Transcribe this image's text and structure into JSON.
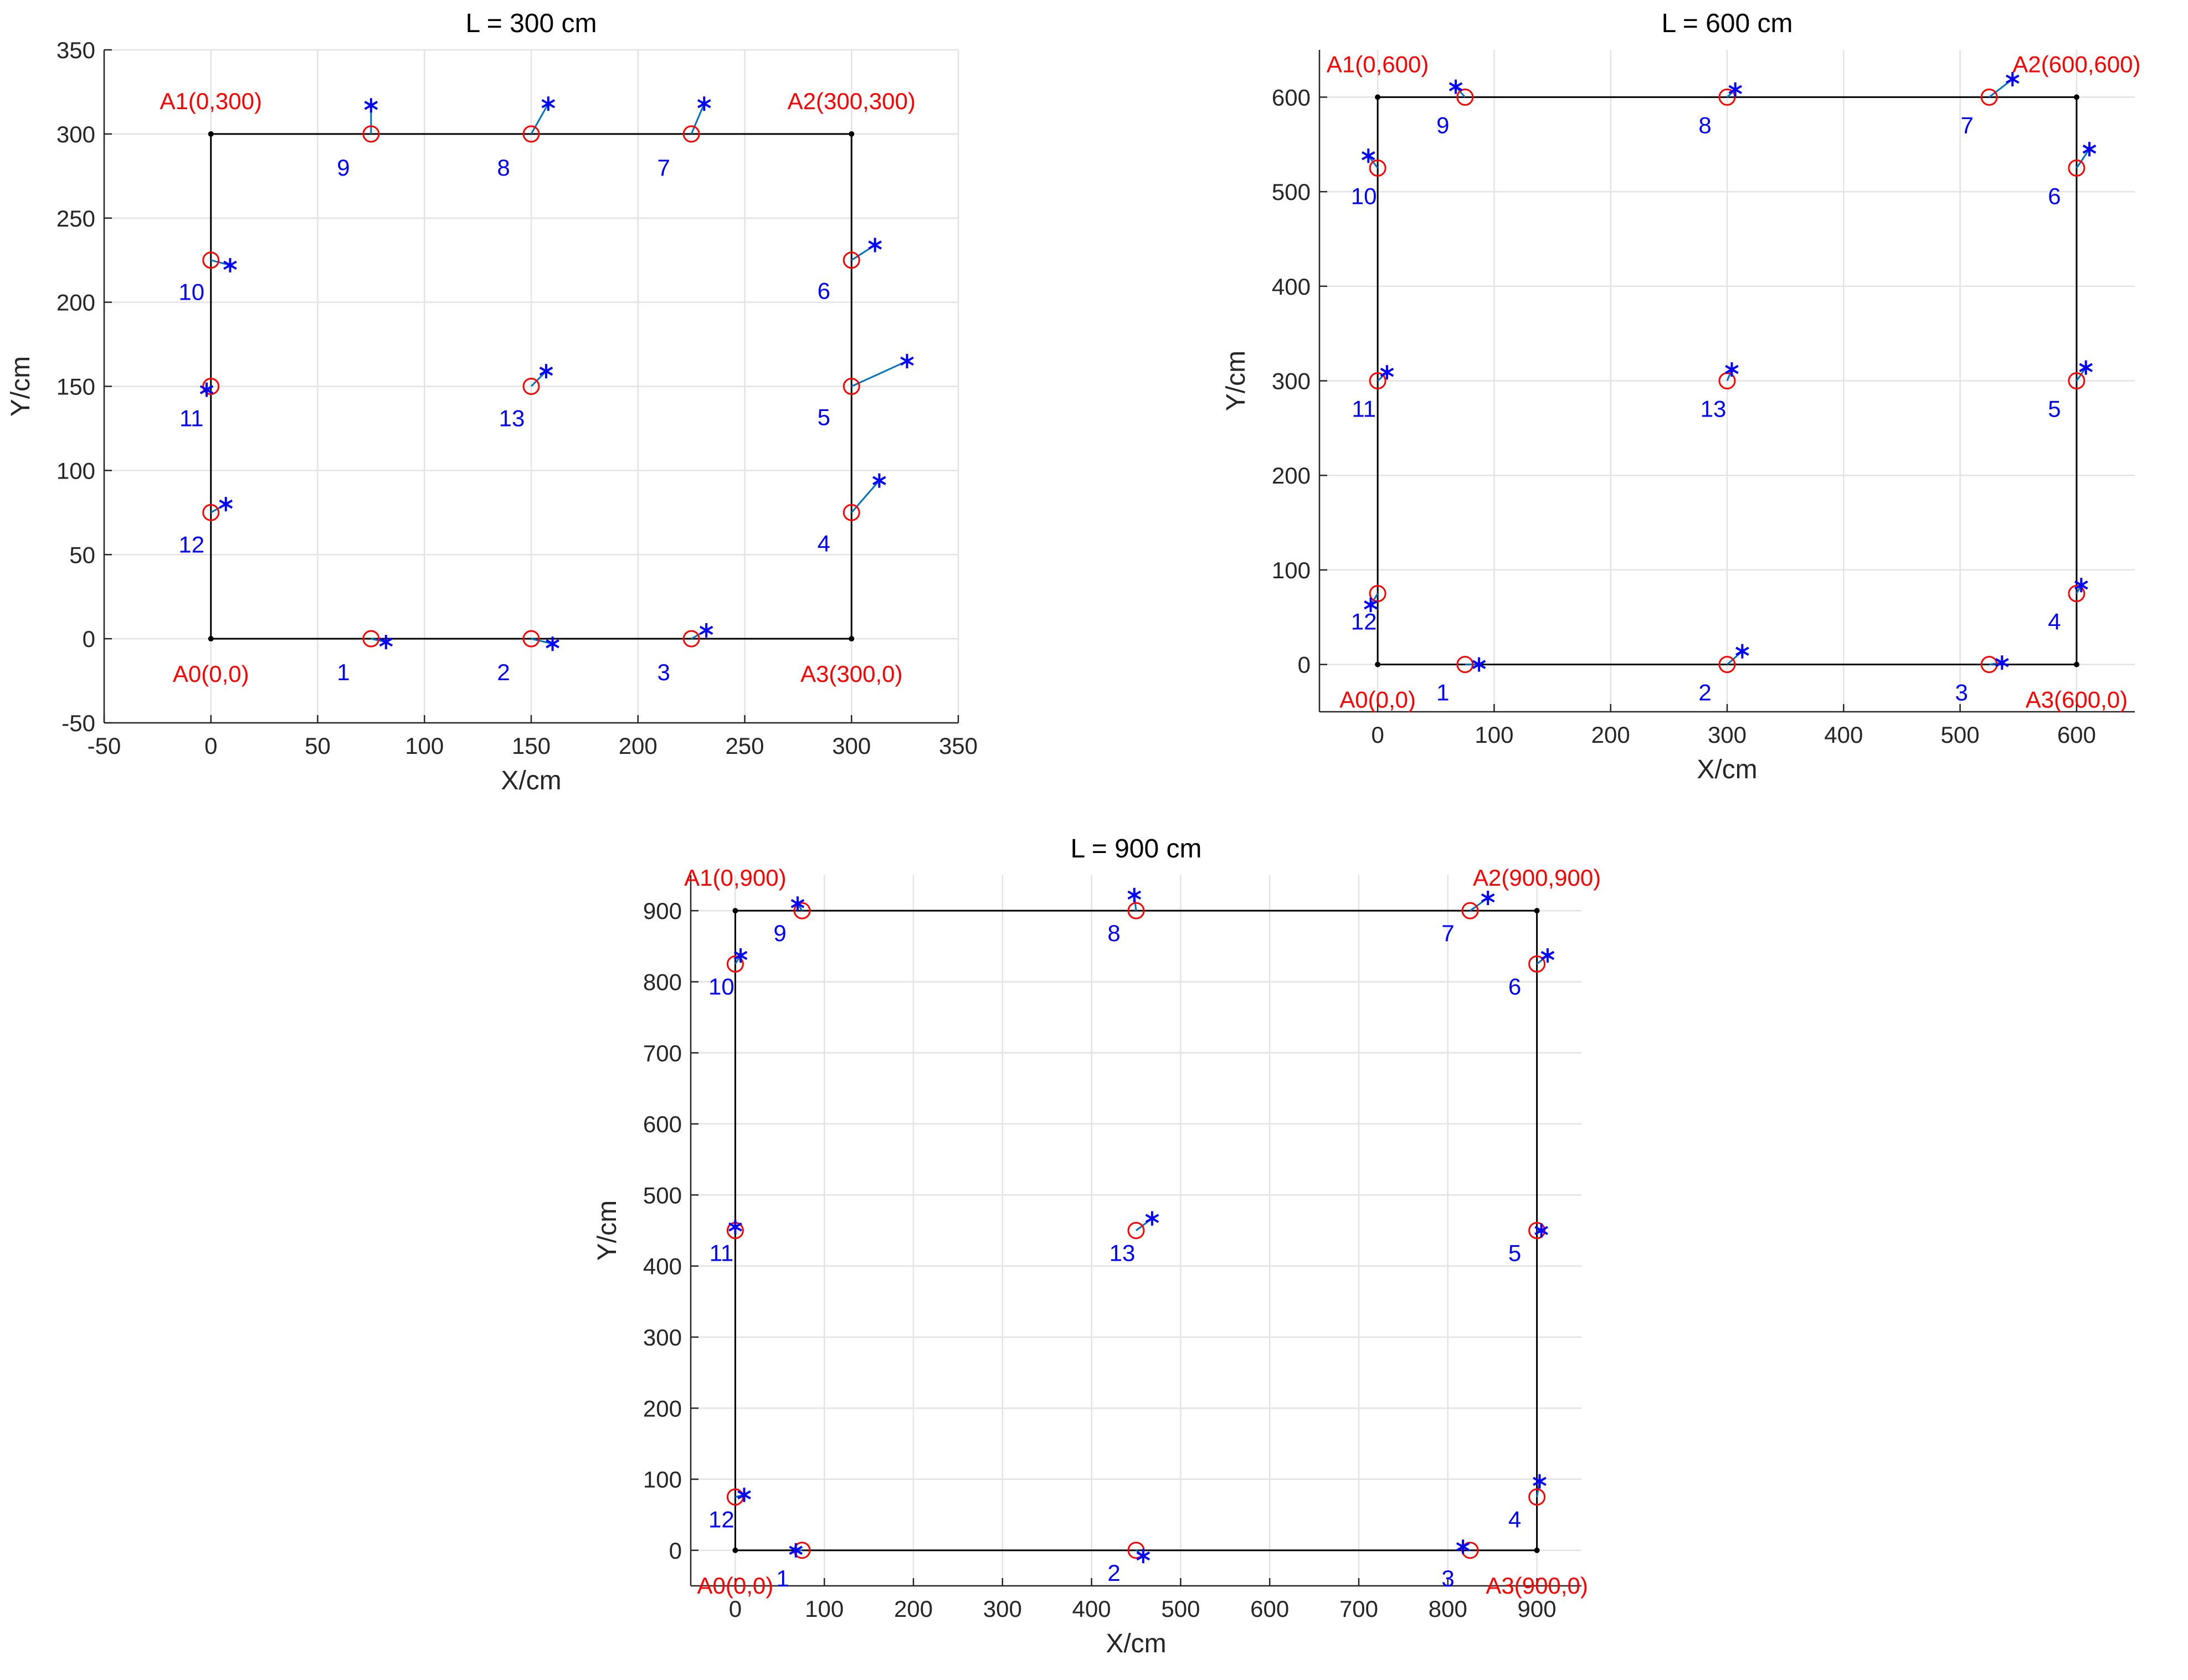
{
  "colors": {
    "true_position": "#ff0000",
    "estimated_position": "#0000ff",
    "error_line": "#0072bd",
    "boundary": "#000000",
    "grid": "#e3e3e3"
  },
  "chart_data": [
    {
      "type": "scatter",
      "title": "L = 300 cm",
      "xlabel": "X/cm",
      "ylabel": "Y/cm",
      "xlim": [
        -50,
        350
      ],
      "ylim": [
        -50,
        350
      ],
      "xticks": [
        -50,
        0,
        50,
        100,
        150,
        200,
        250,
        300,
        350
      ],
      "yticks": [
        -50,
        0,
        50,
        100,
        150,
        200,
        250,
        300,
        350
      ],
      "grid": true,
      "boundary": [
        [
          0,
          0
        ],
        [
          0,
          300
        ],
        [
          300,
          300
        ],
        [
          300,
          0
        ]
      ],
      "anchors": [
        {
          "label": "A0(0,0)",
          "x": 0,
          "y": 0,
          "label_pos": "below"
        },
        {
          "label": "A1(0,300)",
          "x": 0,
          "y": 300,
          "label_pos": "above"
        },
        {
          "label": "A2(300,300)",
          "x": 300,
          "y": 300,
          "label_pos": "above"
        },
        {
          "label": "A3(300,0)",
          "x": 300,
          "y": 0,
          "label_pos": "below"
        }
      ],
      "points": [
        {
          "id": "1",
          "true": [
            75,
            0
          ],
          "est": [
            82,
            -2
          ]
        },
        {
          "id": "2",
          "true": [
            150,
            0
          ],
          "est": [
            160,
            -3
          ]
        },
        {
          "id": "3",
          "true": [
            225,
            0
          ],
          "est": [
            232,
            5
          ]
        },
        {
          "id": "4",
          "true": [
            300,
            75
          ],
          "est": [
            313,
            94
          ]
        },
        {
          "id": "5",
          "true": [
            300,
            150
          ],
          "est": [
            326,
            165
          ]
        },
        {
          "id": "6",
          "true": [
            300,
            225
          ],
          "est": [
            311,
            234
          ]
        },
        {
          "id": "7",
          "true": [
            225,
            300
          ],
          "est": [
            231,
            318
          ]
        },
        {
          "id": "8",
          "true": [
            150,
            300
          ],
          "est": [
            158,
            318
          ]
        },
        {
          "id": "9",
          "true": [
            75,
            300
          ],
          "est": [
            75,
            317
          ]
        },
        {
          "id": "10",
          "true": [
            0,
            225
          ],
          "est": [
            9,
            222
          ]
        },
        {
          "id": "11",
          "true": [
            0,
            150
          ],
          "est": [
            -2,
            148
          ]
        },
        {
          "id": "12",
          "true": [
            0,
            75
          ],
          "est": [
            7,
            80
          ]
        },
        {
          "id": "13",
          "true": [
            150,
            150
          ],
          "est": [
            157,
            159
          ]
        }
      ]
    },
    {
      "type": "scatter",
      "title": "L = 600 cm",
      "xlabel": "X/cm",
      "ylabel": "Y/cm",
      "xlim": [
        -50,
        650
      ],
      "ylim": [
        -50,
        650
      ],
      "xticks": [
        0,
        100,
        200,
        300,
        400,
        500,
        600
      ],
      "yticks": [
        0,
        100,
        200,
        300,
        400,
        500,
        600
      ],
      "grid": true,
      "boundary": [
        [
          0,
          0
        ],
        [
          0,
          600
        ],
        [
          600,
          600
        ],
        [
          600,
          0
        ]
      ],
      "anchors": [
        {
          "label": "A0(0,0)",
          "x": 0,
          "y": 0,
          "label_pos": "below"
        },
        {
          "label": "A1(0,600)",
          "x": 0,
          "y": 600,
          "label_pos": "above"
        },
        {
          "label": "A2(600,600)",
          "x": 600,
          "y": 600,
          "label_pos": "above"
        },
        {
          "label": "A3(600,0)",
          "x": 600,
          "y": 0,
          "label_pos": "below"
        }
      ],
      "points": [
        {
          "id": "1",
          "true": [
            75,
            0
          ],
          "est": [
            87,
            0
          ]
        },
        {
          "id": "2",
          "true": [
            300,
            0
          ],
          "est": [
            313,
            14
          ]
        },
        {
          "id": "3",
          "true": [
            525,
            0
          ],
          "est": [
            536,
            2
          ]
        },
        {
          "id": "4",
          "true": [
            600,
            75
          ],
          "est": [
            604,
            84
          ]
        },
        {
          "id": "5",
          "true": [
            600,
            300
          ],
          "est": [
            608,
            314
          ]
        },
        {
          "id": "6",
          "true": [
            600,
            525
          ],
          "est": [
            611,
            545
          ]
        },
        {
          "id": "7",
          "true": [
            525,
            600
          ],
          "est": [
            545,
            619
          ]
        },
        {
          "id": "8",
          "true": [
            300,
            600
          ],
          "est": [
            307,
            608
          ]
        },
        {
          "id": "9",
          "true": [
            75,
            600
          ],
          "est": [
            67,
            611
          ]
        },
        {
          "id": "10",
          "true": [
            0,
            525
          ],
          "est": [
            -8,
            538
          ]
        },
        {
          "id": "11",
          "true": [
            0,
            300
          ],
          "est": [
            8,
            309
          ]
        },
        {
          "id": "12",
          "true": [
            0,
            75
          ],
          "est": [
            -6,
            63
          ]
        },
        {
          "id": "13",
          "true": [
            300,
            300
          ],
          "est": [
            304,
            312
          ]
        }
      ]
    },
    {
      "type": "scatter",
      "title": "L = 900 cm",
      "xlabel": "X/cm",
      "ylabel": "Y/cm",
      "xlim": [
        -50,
        950
      ],
      "ylim": [
        -50,
        950
      ],
      "xticks": [
        0,
        100,
        200,
        300,
        400,
        500,
        600,
        700,
        800,
        900
      ],
      "yticks": [
        0,
        100,
        200,
        300,
        400,
        500,
        600,
        700,
        800,
        900
      ],
      "grid": true,
      "boundary": [
        [
          0,
          0
        ],
        [
          0,
          900
        ],
        [
          900,
          900
        ],
        [
          900,
          0
        ]
      ],
      "anchors": [
        {
          "label": "A0(0,0)",
          "x": 0,
          "y": 0,
          "label_pos": "below"
        },
        {
          "label": "A1(0,900)",
          "x": 0,
          "y": 900,
          "label_pos": "above"
        },
        {
          "label": "A2(900,900)",
          "x": 900,
          "y": 900,
          "label_pos": "above"
        },
        {
          "label": "A3(900,0)",
          "x": 900,
          "y": 0,
          "label_pos": "below"
        }
      ],
      "points": [
        {
          "id": "1",
          "true": [
            75,
            0
          ],
          "est": [
            68,
            0
          ]
        },
        {
          "id": "2",
          "true": [
            450,
            0
          ],
          "est": [
            458,
            -8
          ]
        },
        {
          "id": "3",
          "true": [
            825,
            0
          ],
          "est": [
            817,
            5
          ]
        },
        {
          "id": "4",
          "true": [
            900,
            75
          ],
          "est": [
            903,
            97
          ]
        },
        {
          "id": "5",
          "true": [
            900,
            450
          ],
          "est": [
            905,
            450
          ]
        },
        {
          "id": "6",
          "true": [
            900,
            825
          ],
          "est": [
            912,
            837
          ]
        },
        {
          "id": "7",
          "true": [
            825,
            900
          ],
          "est": [
            845,
            918
          ]
        },
        {
          "id": "8",
          "true": [
            450,
            900
          ],
          "est": [
            448,
            922
          ]
        },
        {
          "id": "9",
          "true": [
            75,
            900
          ],
          "est": [
            70,
            910
          ]
        },
        {
          "id": "10",
          "true": [
            0,
            825
          ],
          "est": [
            6,
            837
          ]
        },
        {
          "id": "11",
          "true": [
            0,
            450
          ],
          "est": [
            0,
            455
          ]
        },
        {
          "id": "12",
          "true": [
            0,
            75
          ],
          "est": [
            10,
            78
          ]
        },
        {
          "id": "13",
          "true": [
            450,
            450
          ],
          "est": [
            468,
            467
          ]
        }
      ]
    }
  ]
}
